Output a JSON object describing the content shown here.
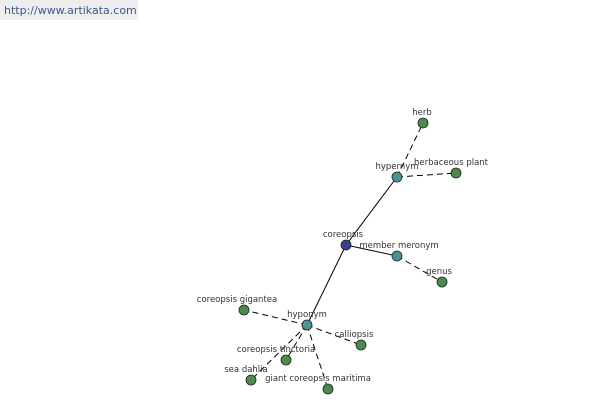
{
  "header": {
    "url": "http://www.artikata.com"
  },
  "nodes": [
    {
      "label": "coreopsis"
    },
    {
      "label": "hypernym"
    },
    {
      "label": "herb"
    },
    {
      "label": "herbaceous plant"
    },
    {
      "label": "member meronym"
    },
    {
      "label": "genus"
    },
    {
      "label": "hyponym"
    },
    {
      "label": "coreopsis gigantea"
    },
    {
      "label": "calliopsis"
    },
    {
      "label": "coreopsis tinctoria"
    },
    {
      "label": "sea dahlia"
    },
    {
      "label": "giant coreopsis maritima"
    }
  ]
}
